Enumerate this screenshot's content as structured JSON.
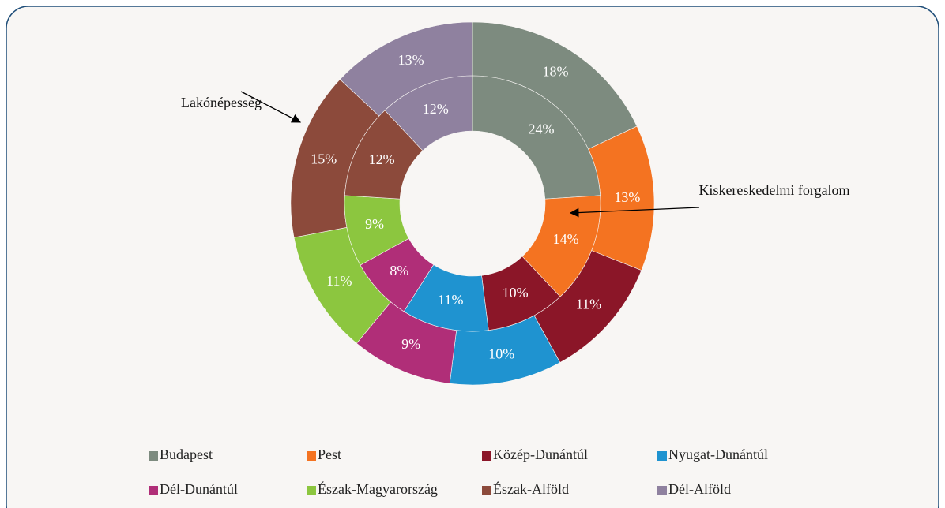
{
  "chart_data": {
    "type": "donut",
    "categories": [
      "Budapest",
      "Pest",
      "Közép-Dunántúl",
      "Nyugat-Dunántúl",
      "Dél-Dunántúl",
      "Észak-Magyarország",
      "Észak-Alföld",
      "Dél-Alföld"
    ],
    "colors": [
      "#7d8b7f",
      "#f47321",
      "#8b1628",
      "#1f93d0",
      "#b02e78",
      "#8cc63f",
      "#8c4a3b",
      "#8f819f"
    ],
    "series": [
      {
        "name": "Lakónépesség",
        "values": [
          18,
          13,
          11,
          10,
          9,
          11,
          15,
          13
        ],
        "value_labels": [
          "18%",
          "13%",
          "11%",
          "10%",
          "9%",
          "11%",
          "15%",
          "13%"
        ]
      },
      {
        "name": "Kiskereskedelmi forgalom",
        "values": [
          24,
          14,
          10,
          11,
          8,
          9,
          12,
          12
        ],
        "value_labels": [
          "24%",
          "14%",
          "10%",
          "11%",
          "8%",
          "9%",
          "12%",
          "12%"
        ]
      }
    ]
  }
}
